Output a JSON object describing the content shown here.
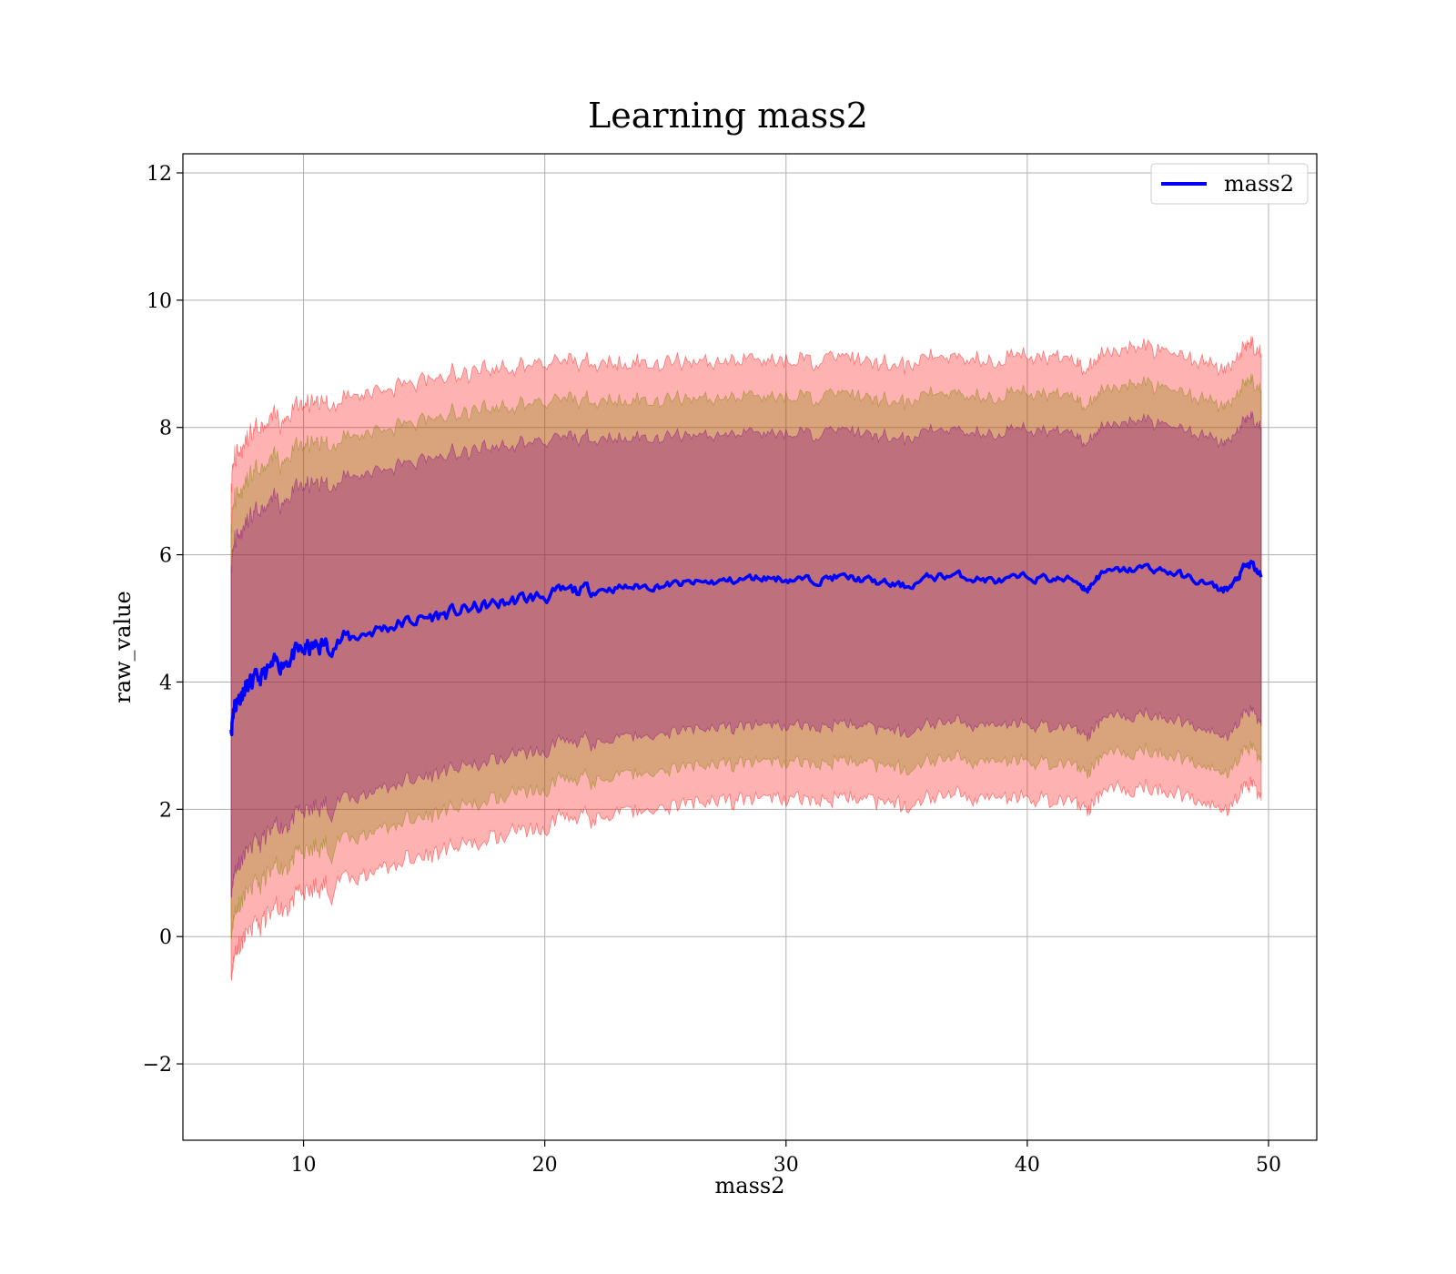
{
  "chart_data": {
    "type": "line",
    "title": "Learning mass2",
    "xlabel": "mass2",
    "ylabel": "raw_value",
    "xlim": [
      5,
      52
    ],
    "ylim": [
      -3.2,
      12.3
    ],
    "xticks": [
      10,
      20,
      30,
      40,
      50
    ],
    "yticks": [
      -2,
      0,
      2,
      4,
      6,
      8,
      10,
      12
    ],
    "xtick_labels": [
      "10",
      "20",
      "30",
      "40",
      "50"
    ],
    "ytick_labels": [
      "−2",
      "0",
      "2",
      "4",
      "6",
      "8",
      "10",
      "12"
    ],
    "grid": true,
    "legend": {
      "placement": "top-right",
      "entries": [
        "mass2"
      ]
    },
    "series": [
      {
        "name": "mass2",
        "color": "#0000ff",
        "x": [
          7.0,
          7.1,
          7.3,
          7.6,
          8.0,
          8.5,
          9.0,
          9.5,
          10.0,
          10.5,
          11.0,
          12.0,
          13.0,
          14.0,
          15.0,
          16.0,
          17.0,
          18.0,
          19.0,
          20.0,
          21.0,
          22.0,
          23.0,
          24.0,
          25.0,
          26.0,
          27.0,
          28.0,
          29.0,
          30.0,
          31.0,
          32.0,
          33.0,
          34.0,
          35.0,
          36.0,
          37.0,
          38.0,
          39.0,
          40.0,
          41.0,
          42.0,
          42.5,
          43.0,
          44.0,
          45.0,
          46.0,
          47.0,
          48.0,
          48.5,
          49.0,
          49.3,
          49.7
        ],
        "y": [
          3.25,
          3.6,
          3.75,
          3.9,
          4.0,
          4.15,
          4.3,
          4.4,
          4.5,
          4.55,
          4.6,
          4.7,
          4.82,
          4.92,
          5.0,
          5.08,
          5.15,
          5.22,
          5.3,
          5.35,
          5.42,
          5.45,
          5.48,
          5.5,
          5.52,
          5.55,
          5.57,
          5.6,
          5.65,
          5.62,
          5.6,
          5.65,
          5.62,
          5.55,
          5.5,
          5.65,
          5.68,
          5.62,
          5.58,
          5.65,
          5.62,
          5.6,
          5.45,
          5.7,
          5.75,
          5.8,
          5.72,
          5.6,
          5.45,
          5.5,
          5.8,
          5.85,
          5.65
        ]
      }
    ],
    "bands": [
      {
        "color": "#ff0000",
        "opacity": 0.3,
        "k": 6.0
      },
      {
        "color": "#808000",
        "opacity": 0.3,
        "k": 5.0
      },
      {
        "color": "#800080",
        "opacity": 0.3,
        "k": 4.0
      }
    ]
  }
}
